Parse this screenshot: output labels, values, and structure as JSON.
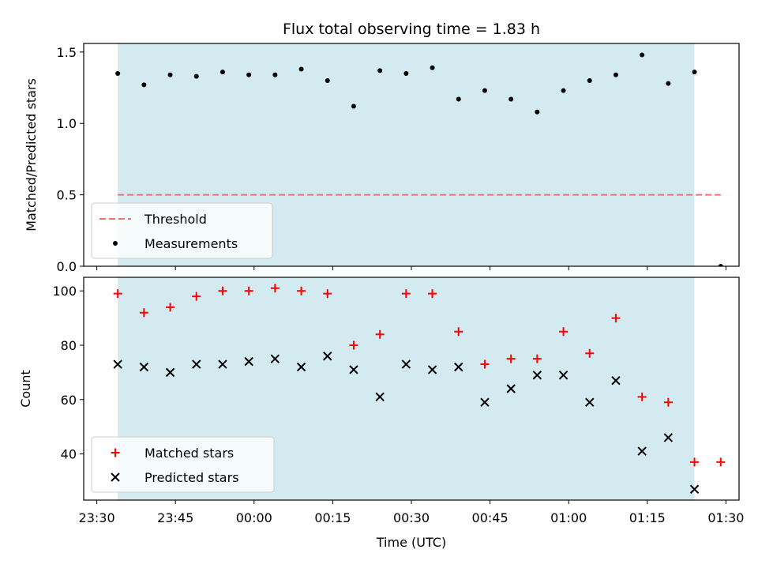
{
  "title": "Flux total observing time = 1.83 h",
  "xlabel": "Time (UTC)",
  "x_ticks": [
    "23:30",
    "23:45",
    "00:00",
    "00:15",
    "00:30",
    "00:45",
    "01:00",
    "01:15",
    "01:30"
  ],
  "chart_data": [
    {
      "type": "scatter",
      "ylabel": "Matched/Predicted stars",
      "ylim": [
        0,
        1.56
      ],
      "y_ticks": [
        "0.0",
        "0.5",
        "1.0",
        "1.5"
      ],
      "shaded_span": {
        "x_start": "23:34",
        "x_end": "01:24",
        "color": "#d3eaf0"
      },
      "threshold": {
        "name": "Threshold",
        "value": 0.5,
        "x_start": "23:34",
        "x_end": "01:29",
        "color": "#f07070"
      },
      "series": [
        {
          "name": "Measurements",
          "marker": "dot",
          "color": "#000000",
          "x": [
            "23:34",
            "23:39",
            "23:44",
            "23:49",
            "23:54",
            "23:59",
            "00:04",
            "00:09",
            "00:14",
            "00:19",
            "00:24",
            "00:29",
            "00:34",
            "00:39",
            "00:44",
            "00:49",
            "00:54",
            "00:59",
            "01:04",
            "01:09",
            "01:14",
            "01:19",
            "01:24",
            "01:29"
          ],
          "values": [
            1.35,
            1.27,
            1.34,
            1.33,
            1.36,
            1.34,
            1.34,
            1.38,
            1.3,
            1.12,
            1.37,
            1.35,
            1.39,
            1.17,
            1.23,
            1.17,
            1.08,
            1.23,
            1.3,
            1.34,
            1.48,
            1.28,
            1.36,
            0.0
          ]
        }
      ],
      "legend": {
        "position": "lower-left",
        "entries": [
          "Threshold",
          "Measurements"
        ]
      }
    },
    {
      "type": "scatter",
      "ylabel": "Count",
      "ylim": [
        23,
        105
      ],
      "y_ticks": [
        "40",
        "60",
        "80",
        "100"
      ],
      "shaded_span": {
        "x_start": "23:34",
        "x_end": "01:24",
        "color": "#d3eaf0"
      },
      "series": [
        {
          "name": "Matched stars",
          "marker": "plus",
          "color": "#ff0000",
          "x": [
            "23:34",
            "23:39",
            "23:44",
            "23:49",
            "23:54",
            "23:59",
            "00:04",
            "00:09",
            "00:14",
            "00:19",
            "00:24",
            "00:29",
            "00:34",
            "00:39",
            "00:44",
            "00:49",
            "00:54",
            "00:59",
            "01:04",
            "01:09",
            "01:14",
            "01:19",
            "01:24",
            "01:29"
          ],
          "values": [
            99,
            92,
            94,
            98,
            100,
            100,
            101,
            100,
            99,
            80,
            84,
            99,
            99,
            85,
            73,
            75,
            75,
            85,
            77,
            90,
            61,
            59,
            37,
            37
          ]
        },
        {
          "name": "Predicted stars",
          "marker": "x",
          "color": "#000000",
          "x": [
            "23:34",
            "23:39",
            "23:44",
            "23:49",
            "23:54",
            "23:59",
            "00:04",
            "00:09",
            "00:14",
            "00:19",
            "00:24",
            "00:29",
            "00:34",
            "00:39",
            "00:44",
            "00:49",
            "00:54",
            "00:59",
            "01:04",
            "01:09",
            "01:14",
            "01:19",
            "01:24"
          ],
          "values": [
            73,
            72,
            70,
            73,
            73,
            74,
            75,
            72,
            76,
            71,
            61,
            73,
            71,
            72,
            59,
            64,
            69,
            69,
            59,
            67,
            41,
            46,
            27
          ]
        }
      ],
      "legend": {
        "position": "lower-left",
        "entries": [
          "Matched stars",
          "Predicted stars"
        ]
      }
    }
  ]
}
